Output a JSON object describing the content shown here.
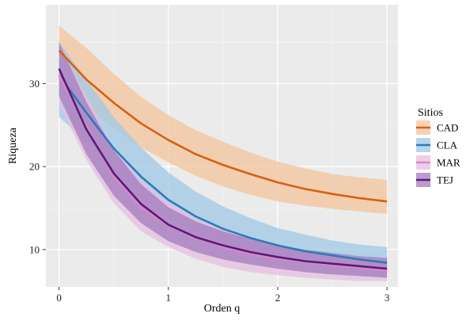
{
  "chart_data": {
    "type": "line",
    "xlabel": "Orden q",
    "ylabel": "Riqueza",
    "xlim": [
      -0.12,
      3.1
    ],
    "ylim": [
      5.5,
      39.5
    ],
    "xticks": [
      0,
      1,
      2,
      3
    ],
    "yticks": [
      10,
      20,
      30
    ],
    "grid": true,
    "legend": {
      "title": "Sitios",
      "placement": "right"
    },
    "x": [
      0,
      0.25,
      0.5,
      0.75,
      1,
      1.25,
      1.5,
      1.75,
      2,
      2.25,
      2.5,
      2.75,
      3
    ],
    "series": [
      {
        "name": "CAD",
        "color": "#d95f0e",
        "fill": "#f4c49c",
        "values": [
          34,
          30.5,
          27.7,
          25.2,
          23.2,
          21.5,
          20.2,
          19.1,
          18.1,
          17.3,
          16.7,
          16.2,
          15.8
        ],
        "lower": [
          30,
          27.3,
          24.6,
          22.3,
          20.5,
          18.9,
          17.6,
          16.6,
          15.8,
          15.3,
          14.9,
          14.6,
          14.3
        ],
        "upper": [
          37,
          34.3,
          31.2,
          28.4,
          26.2,
          24.4,
          23,
          21.7,
          20.6,
          19.8,
          19.1,
          18.7,
          18.4
        ]
      },
      {
        "name": "CLA",
        "color": "#2b7bb9",
        "fill": "#9fc8e6",
        "values": [
          31,
          26.5,
          22.2,
          18.8,
          16,
          14,
          12.5,
          11.4,
          10.5,
          9.8,
          9.3,
          8.8,
          8.4
        ],
        "lower": [
          26,
          23,
          19.5,
          16.2,
          13.8,
          12,
          10.7,
          9.7,
          8.9,
          8.3,
          7.8,
          7.4,
          7.1
        ],
        "upper": [
          35,
          30.5,
          26,
          22.3,
          19.3,
          17,
          15.2,
          13.8,
          12.6,
          11.8,
          11.1,
          10.6,
          10.3
        ]
      },
      {
        "name": "MAR",
        "color": "#d988c7",
        "fill": "#e7bde1",
        "values": [
          31,
          24.8,
          18.8,
          15.1,
          12.9,
          11.4,
          10.3,
          9.5,
          8.9,
          8.5,
          8.1,
          7.8,
          7.5
        ],
        "lower": [
          27.5,
          20.8,
          15.6,
          12.2,
          10.3,
          8.9,
          7.9,
          7.3,
          6.9,
          6.6,
          6.4,
          6.2,
          6.2
        ],
        "upper": [
          34.5,
          28.5,
          22.3,
          18.3,
          15.7,
          13.8,
          12.4,
          11.4,
          10.5,
          9.9,
          9.4,
          9,
          8.8
        ]
      },
      {
        "name": "TEJ",
        "color": "#5b1a79",
        "fill": "#a37bbd",
        "values": [
          31.8,
          24.5,
          19.2,
          15.5,
          13,
          11.5,
          10.5,
          9.7,
          9.1,
          8.6,
          8.3,
          8,
          7.7
        ],
        "lower": [
          28.5,
          21.5,
          16.5,
          13.2,
          11,
          9.7,
          8.8,
          8.2,
          7.7,
          7.3,
          7,
          6.8,
          6.6
        ],
        "upper": [
          35,
          27.8,
          22,
          17.9,
          15.1,
          13.4,
          12.2,
          11.3,
          10.5,
          10,
          9.6,
          9.2,
          9
        ]
      }
    ]
  }
}
